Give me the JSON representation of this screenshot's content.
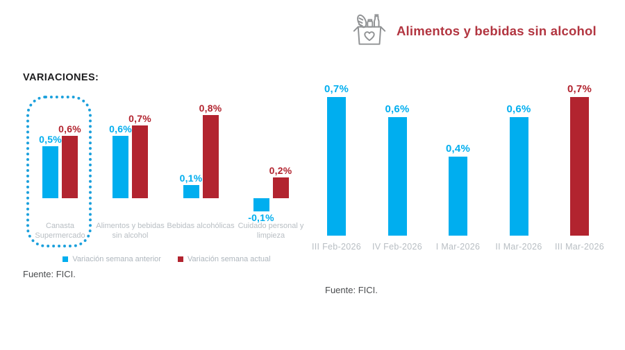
{
  "header": {
    "title": "Alimentos y bebidas sin alcohol",
    "icon": "grocery-basket-icon"
  },
  "colors": {
    "blue": "#00aeef",
    "red": "#b2242f",
    "title_red": "#b23540",
    "highlight_blue": "#1ba0dc",
    "category_gray": "#b8bec3",
    "legend_gray": "#aeb6bd",
    "source_gray": "#4a4c4e",
    "icon_gray": "#909294"
  },
  "chart_data": [
    {
      "type": "bar",
      "title": "VARIACIONES:",
      "categories": [
        "Canasta Supermercado",
        "Alimentos y bebidas sin alcohol",
        "Bebidas alcohólicas",
        "Cuidado personal y limpieza"
      ],
      "series": [
        {
          "name": "Variación semana anterior",
          "color": "#00aeef",
          "values": [
            0.5,
            0.6,
            0.1,
            -0.1
          ]
        },
        {
          "name": "Variación semana actual",
          "color": "#b2242f",
          "values": [
            0.6,
            0.7,
            0.8,
            0.2
          ]
        }
      ],
      "data_labels": [
        [
          "0,5%",
          "0,6%",
          "0,1%",
          "-0,1%"
        ],
        [
          "0,6%",
          "0,7%",
          "0,8%",
          "0,2%"
        ]
      ],
      "value_format": "percent, comma decimal",
      "ylim": [
        -0.1,
        0.8
      ],
      "grid": false,
      "axis_lines": false,
      "legend_position": "bottom center",
      "highlight": {
        "category": "Canasta Supermercado",
        "style": "dotted blue rounded outline"
      },
      "source": "Fuente: FICI."
    },
    {
      "type": "bar",
      "title": "",
      "categories": [
        "III Feb-2026",
        "IV Feb-2026",
        "I Mar-2026",
        "II Mar-2026",
        "III Mar-2026"
      ],
      "values": [
        0.7,
        0.6,
        0.4,
        0.6,
        0.7
      ],
      "bar_colors": [
        "#00aeef",
        "#00aeef",
        "#00aeef",
        "#00aeef",
        "#b2242f"
      ],
      "data_labels": [
        "0,7%",
        "0,6%",
        "0,4%",
        "0,6%",
        "0,7%"
      ],
      "value_format": "percent, comma decimal",
      "ylim": [
        0,
        0.7
      ],
      "grid": false,
      "axis_lines": false,
      "source": "Fuente: FICI."
    }
  ]
}
